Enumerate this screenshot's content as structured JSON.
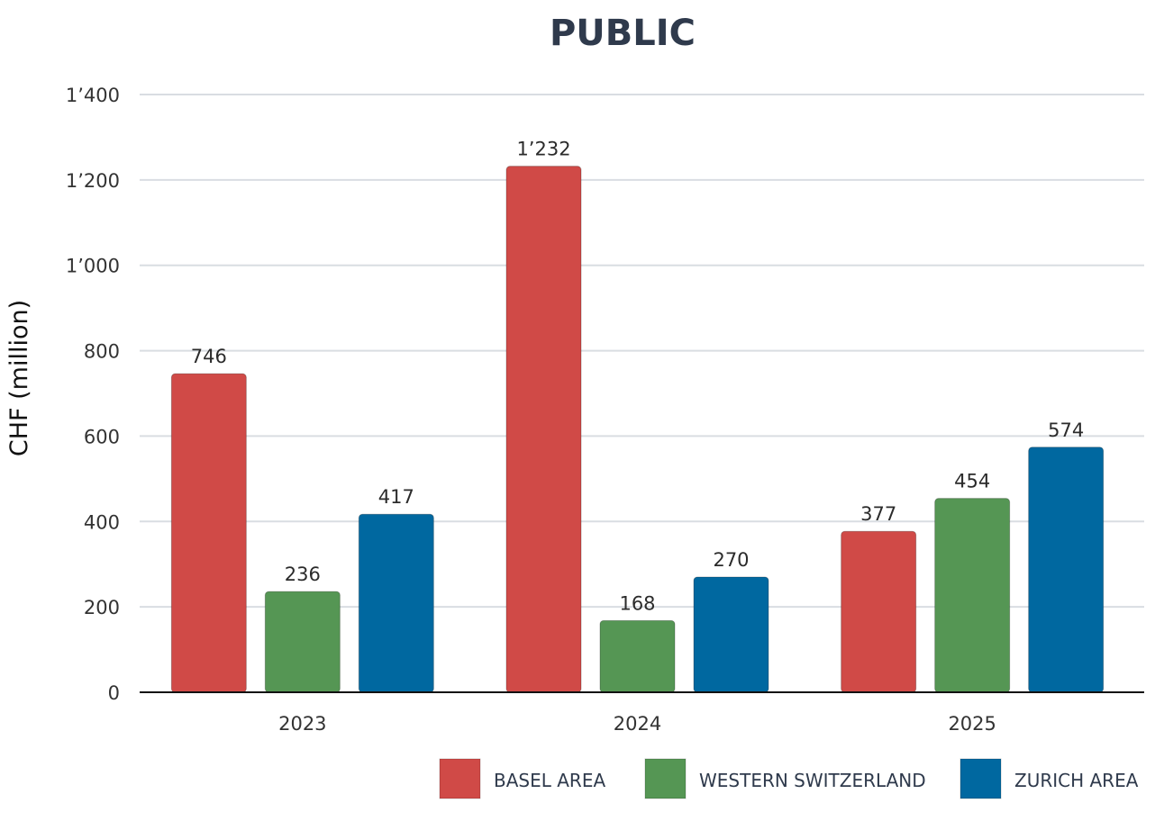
{
  "chart_data": {
    "type": "bar",
    "title": "PUBLIC",
    "ylabel": "CHF (million)",
    "xlabel": "",
    "categories": [
      "2023",
      "2024",
      "2025"
    ],
    "ylim": [
      0,
      1400
    ],
    "yticks": [
      0,
      200,
      400,
      600,
      800,
      1000,
      1200,
      1400
    ],
    "ytick_labels": [
      "0",
      "200",
      "400",
      "600",
      "800",
      "1’000",
      "1’200",
      "1’400"
    ],
    "grid": true,
    "legend_position": "bottom-right",
    "series": [
      {
        "name": "BASEL AREA",
        "color": "#d04a47",
        "values": [
          746,
          1232,
          377
        ],
        "labels": [
          "746",
          "1’232",
          "377"
        ]
      },
      {
        "name": "WESTERN SWITZERLAND",
        "color": "#559654",
        "values": [
          236,
          168,
          454
        ],
        "labels": [
          "236",
          "168",
          "454"
        ]
      },
      {
        "name": "ZURICH AREA",
        "color": "#0068a0",
        "values": [
          417,
          270,
          574
        ],
        "labels": [
          "417",
          "270",
          "574"
        ]
      }
    ]
  }
}
